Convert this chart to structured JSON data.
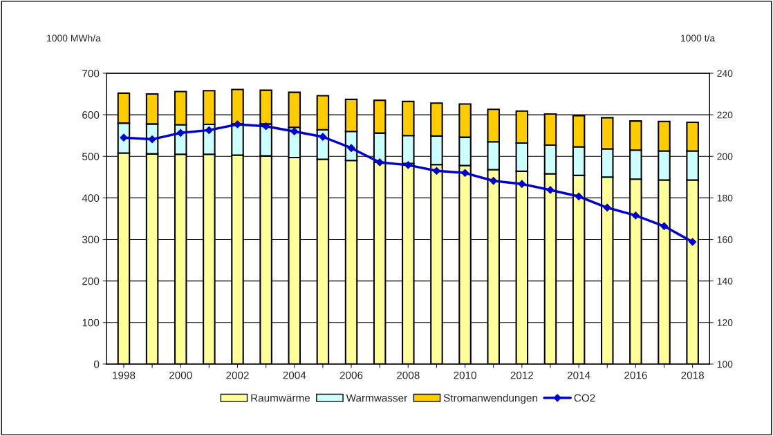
{
  "chart_data": {
    "type": "bar",
    "stacked": true,
    "ylabel": "1000 MWh/a",
    "y2label": "1000 t/a",
    "categories": [
      "1998",
      null,
      "2000",
      null,
      "2002",
      null,
      "2004",
      null,
      "2006",
      null,
      "2008",
      null,
      "2010",
      null,
      "2012",
      null,
      "2014",
      null,
      "2016",
      null,
      "2018"
    ],
    "series": [
      {
        "name": "Raumwärme",
        "color": "#ffff99",
        "values": [
          508,
          506,
          505,
          505,
          503,
          501,
          497,
          493,
          490,
          486,
          483,
          480,
          478,
          468,
          464,
          458,
          454,
          450,
          445,
          443,
          443
        ]
      },
      {
        "name": "Warmwasser",
        "color": "#ccffff",
        "values": [
          72,
          72,
          71,
          72,
          75,
          77,
          73,
          71,
          70,
          70,
          67,
          69,
          68,
          67,
          68,
          69,
          69,
          68,
          70,
          70,
          70
        ]
      },
      {
        "name": "Stromanwendungen",
        "color": "#ffcc00",
        "values": [
          72,
          72,
          80,
          81,
          83,
          81,
          84,
          82,
          77,
          79,
          82,
          79,
          80,
          78,
          77,
          75,
          75,
          75,
          70,
          71,
          69
        ]
      },
      {
        "name": "CO2",
        "type": "line",
        "axis": "y2",
        "color": "#0000cc",
        "marker": "diamond",
        "values": [
          209.0,
          208.2,
          211.3,
          212.6,
          215.4,
          214.5,
          212.0,
          209.4,
          204.0,
          197.1,
          195.8,
          193.0,
          192.0,
          188.2,
          186.7,
          183.8,
          180.7,
          175.3,
          171.5,
          166.4,
          158.8
        ]
      }
    ],
    "ylim": [
      0,
      700
    ],
    "yticks": [
      0,
      100,
      200,
      300,
      400,
      500,
      600,
      700
    ],
    "y2lim": [
      100,
      240
    ],
    "y2ticks": [
      100,
      120,
      140,
      160,
      180,
      200,
      220,
      240
    ],
    "grid": "y",
    "legend": "bottom"
  }
}
